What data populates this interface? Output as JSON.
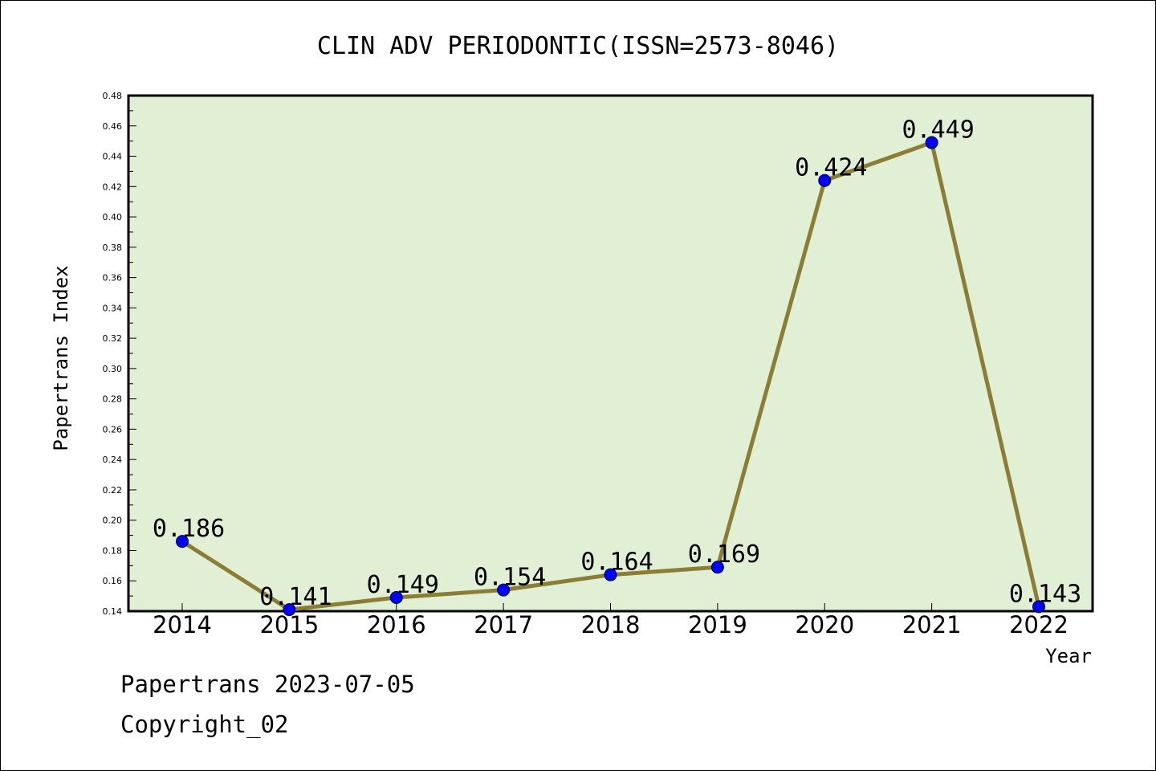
{
  "footer": {
    "line1": "Papertrans 2023-07-05",
    "line2": "Copyright_02"
  },
  "colors": {
    "plot_background": "#e1efd5",
    "line": "#8b7d33",
    "marker": "#0000ff"
  },
  "chart_data": {
    "type": "line",
    "title": "CLIN ADV PERIODONTIC(ISSN=2573-8046)",
    "xlabel": "Year",
    "ylabel": "Papertrans Index",
    "categories": [
      "2014",
      "2015",
      "2016",
      "2017",
      "2018",
      "2019",
      "2020",
      "2021",
      "2022"
    ],
    "series": [
      {
        "values": [
          0.186,
          0.141,
          0.149,
          0.154,
          0.164,
          0.169,
          0.424,
          0.449,
          0.143
        ],
        "data_labels": [
          "0.186",
          "0.141",
          "0.149",
          "0.154",
          "0.164",
          "0.169",
          "0.424",
          "0.449",
          "0.143"
        ]
      }
    ],
    "ylim": [
      0.14,
      0.48
    ],
    "yticks": [
      "0.14",
      "0.16",
      "0.18",
      "0.20",
      "0.22",
      "0.24",
      "0.26",
      "0.28",
      "0.30",
      "0.32",
      "0.34",
      "0.36",
      "0.38",
      "0.40",
      "0.42",
      "0.44",
      "0.46",
      "0.48"
    ],
    "grid": false,
    "legend": "none"
  }
}
